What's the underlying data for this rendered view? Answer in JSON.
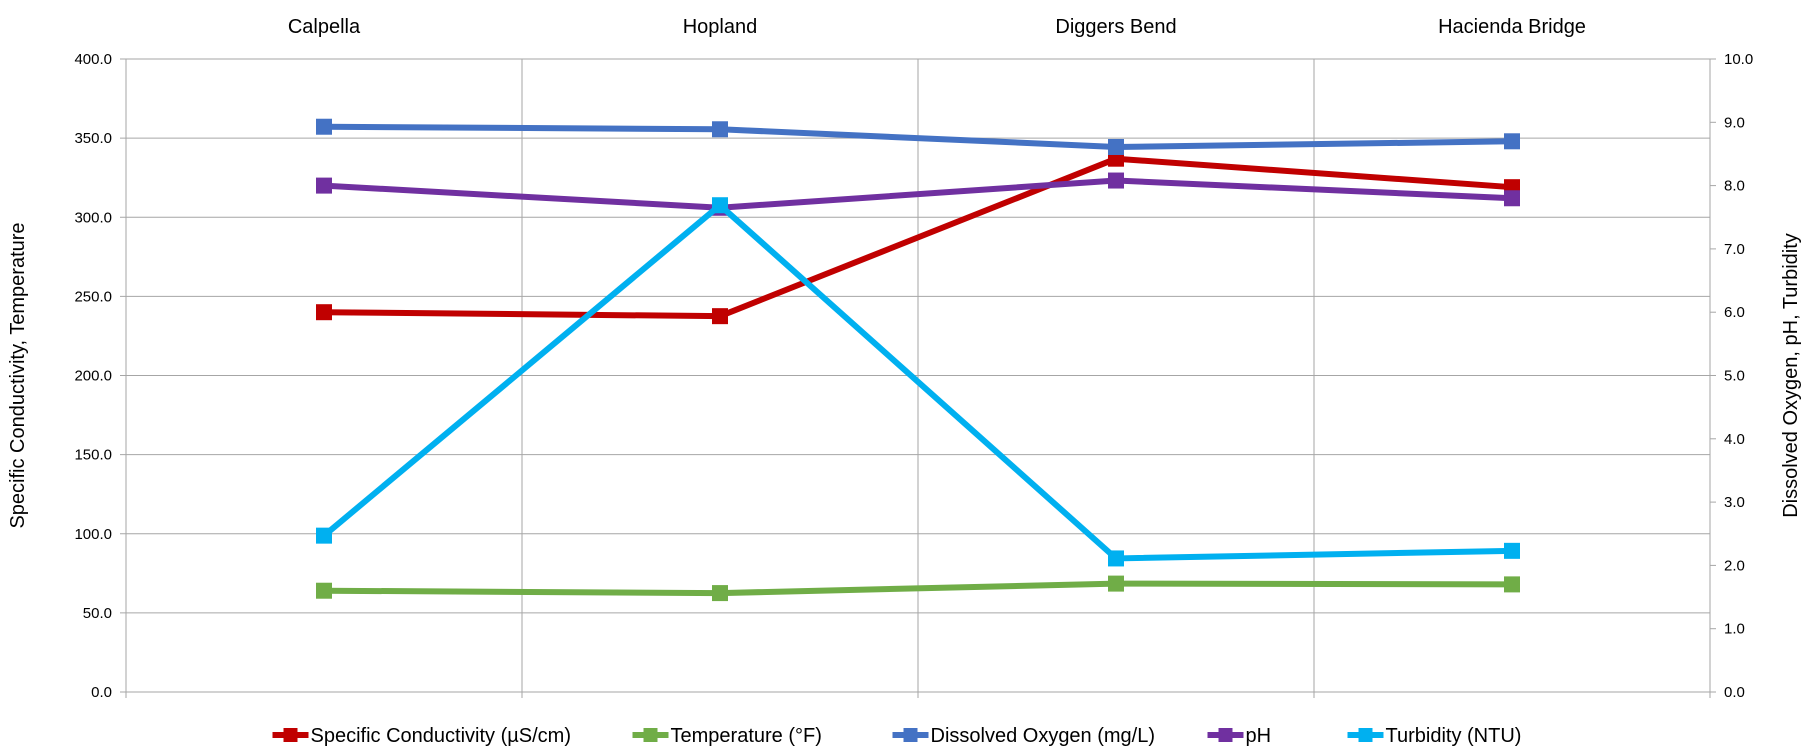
{
  "chart_data": {
    "type": "line",
    "categories": [
      "Calpella",
      "Hopland",
      "Diggers Bend",
      "Hacienda Bridge"
    ],
    "y_left": {
      "label": "Specific Conductivity, Temperature",
      "lim": [
        0,
        400
      ],
      "ticks": [
        "0.0",
        "50.0",
        "100.0",
        "150.0",
        "200.0",
        "250.0",
        "300.0",
        "350.0",
        "400.0"
      ]
    },
    "y_right": {
      "label": "Dissolved Oxygen, pH, Turbidity",
      "lim": [
        0,
        10
      ],
      "ticks": [
        "0.0",
        "1.0",
        "2.0",
        "3.0",
        "4.0",
        "5.0",
        "6.0",
        "7.0",
        "8.0",
        "9.0",
        "10.0"
      ]
    },
    "grid": true,
    "legend_position": "bottom",
    "series": [
      {
        "name": "Specific Conductivity (µS/cm)",
        "axis": "left",
        "color": "#c00000",
        "values": [
          240.0,
          237.5,
          337.0,
          319.0
        ]
      },
      {
        "name": "Temperature  (°F)",
        "axis": "left",
        "color": "#70ad47",
        "values": [
          64.0,
          62.5,
          68.5,
          68.0
        ]
      },
      {
        "name": "Dissolved Oxygen (mg/L)",
        "axis": "right",
        "color": "#4472c4",
        "values": [
          8.93,
          8.89,
          8.61,
          8.7
        ]
      },
      {
        "name": "pH",
        "axis": "right",
        "color": "#7030a0",
        "values": [
          8.0,
          7.65,
          8.08,
          7.8
        ]
      },
      {
        "name": "Turbidity (NTU)",
        "axis": "right",
        "color": "#00b0f0",
        "values": [
          2.47,
          7.69,
          2.11,
          2.23
        ]
      }
    ]
  }
}
